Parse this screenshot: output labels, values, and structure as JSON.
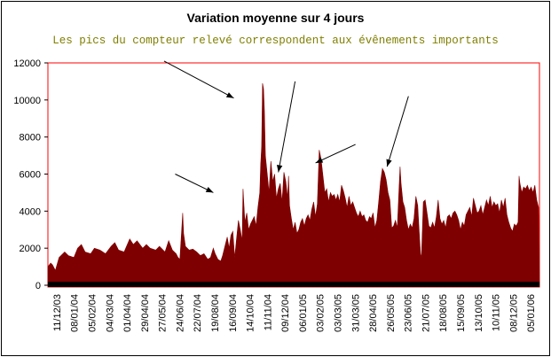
{
  "chart_data": {
    "type": "area",
    "title": "Variation moyenne sur 4 jours",
    "subtitle": "Les pics du compteur relevé correspondent aux évênements importants",
    "ylim": [
      0,
      12000
    ],
    "yticks": [
      "0",
      "2000",
      "4000",
      "6000",
      "8000",
      "10000",
      "12000"
    ],
    "xticks": [
      "11/12/03",
      "08/01/04",
      "05/02/04",
      "04/03/04",
      "01/04/04",
      "29/04/04",
      "27/05/04",
      "24/06/04",
      "22/07/04",
      "19/08/04",
      "16/09/04",
      "14/10/04",
      "11/11/04",
      "09/12/04",
      "06/01/05",
      "03/02/05",
      "03/03/05",
      "31/03/05",
      "28/04/05",
      "26/05/05",
      "23/06/05",
      "21/07/05",
      "18/08/05",
      "15/09/05",
      "13/10/05",
      "10/11/05",
      "08/12/05",
      "05/01/06"
    ],
    "series": [
      {
        "color": "#7f0000",
        "points": [
          [
            0,
            1000
          ],
          [
            3,
            1200
          ],
          [
            5,
            1100
          ],
          [
            8,
            800
          ],
          [
            12,
            1500
          ],
          [
            18,
            1800
          ],
          [
            22,
            1600
          ],
          [
            28,
            1500
          ],
          [
            32,
            2000
          ],
          [
            36,
            2200
          ],
          [
            40,
            1800
          ],
          [
            46,
            1700
          ],
          [
            50,
            2000
          ],
          [
            56,
            1900
          ],
          [
            62,
            1700
          ],
          [
            68,
            2100
          ],
          [
            72,
            2300
          ],
          [
            76,
            1900
          ],
          [
            82,
            1800
          ],
          [
            88,
            2500
          ],
          [
            92,
            2200
          ],
          [
            96,
            2400
          ],
          [
            102,
            2000
          ],
          [
            106,
            2200
          ],
          [
            110,
            2000
          ],
          [
            116,
            1900
          ],
          [
            120,
            2100
          ],
          [
            126,
            1800
          ],
          [
            130,
            2400
          ],
          [
            134,
            1900
          ],
          [
            138,
            1700
          ],
          [
            140,
            1500
          ],
          [
            142,
            1400
          ],
          [
            144,
            3000
          ],
          [
            145,
            3900
          ],
          [
            146,
            2800
          ],
          [
            148,
            2100
          ],
          [
            152,
            1900
          ],
          [
            156,
            1950
          ],
          [
            160,
            1800
          ],
          [
            164,
            1600
          ],
          [
            168,
            1700
          ],
          [
            172,
            1400
          ],
          [
            175,
            1500
          ],
          [
            178,
            2000
          ],
          [
            180,
            1700
          ],
          [
            183,
            1400
          ],
          [
            186,
            1300
          ],
          [
            188,
            1600
          ],
          [
            191,
            2200
          ],
          [
            193,
            2600
          ],
          [
            195,
            2000
          ],
          [
            197,
            2700
          ],
          [
            199,
            2900
          ],
          [
            201,
            1500
          ],
          [
            203,
            2500
          ],
          [
            205,
            3500
          ],
          [
            207,
            3000
          ],
          [
            209,
            2400
          ],
          [
            210,
            5200
          ],
          [
            212,
            3400
          ],
          [
            214,
            3900
          ],
          [
            216,
            3000
          ],
          [
            218,
            3300
          ],
          [
            220,
            3500
          ],
          [
            222,
            3700
          ],
          [
            224,
            3200
          ],
          [
            226,
            4200
          ],
          [
            228,
            5000
          ],
          [
            229,
            6500
          ],
          [
            230,
            7500
          ],
          [
            231,
            10900
          ],
          [
            232,
            10600
          ],
          [
            233,
            9400
          ],
          [
            234,
            7000
          ],
          [
            236,
            6000
          ],
          [
            238,
            5000
          ],
          [
            240,
            6700
          ],
          [
            242,
            5600
          ],
          [
            244,
            6000
          ],
          [
            246,
            4700
          ],
          [
            248,
            5200
          ],
          [
            250,
            5500
          ],
          [
            252,
            4500
          ],
          [
            254,
            6100
          ],
          [
            256,
            5600
          ],
          [
            258,
            4700
          ],
          [
            259,
            5900
          ],
          [
            260,
            4300
          ],
          [
            262,
            3600
          ],
          [
            264,
            3000
          ],
          [
            266,
            3400
          ],
          [
            268,
            2800
          ],
          [
            270,
            3000
          ],
          [
            272,
            3400
          ],
          [
            274,
            3600
          ],
          [
            276,
            3200
          ],
          [
            278,
            3600
          ],
          [
            280,
            3800
          ],
          [
            282,
            3500
          ],
          [
            284,
            4100
          ],
          [
            286,
            4500
          ],
          [
            288,
            3700
          ],
          [
            290,
            4400
          ],
          [
            292,
            7300
          ],
          [
            294,
            6800
          ],
          [
            296,
            5900
          ],
          [
            298,
            5000
          ],
          [
            300,
            5200
          ],
          [
            302,
            4500
          ],
          [
            304,
            5000
          ],
          [
            306,
            4800
          ],
          [
            308,
            4900
          ],
          [
            310,
            4600
          ],
          [
            312,
            4900
          ],
          [
            314,
            4500
          ],
          [
            316,
            5400
          ],
          [
            318,
            5100
          ],
          [
            320,
            4700
          ],
          [
            322,
            4200
          ],
          [
            324,
            4800
          ],
          [
            326,
            4300
          ],
          [
            328,
            4500
          ],
          [
            330,
            4200
          ],
          [
            332,
            3900
          ],
          [
            334,
            3700
          ],
          [
            336,
            4000
          ],
          [
            338,
            3700
          ],
          [
            340,
            3800
          ],
          [
            342,
            3500
          ],
          [
            344,
            3400
          ],
          [
            346,
            3700
          ],
          [
            348,
            3600
          ],
          [
            350,
            3900
          ],
          [
            352,
            3100
          ],
          [
            354,
            3500
          ],
          [
            356,
            4500
          ],
          [
            358,
            5600
          ],
          [
            360,
            6300
          ],
          [
            362,
            6100
          ],
          [
            364,
            5700
          ],
          [
            366,
            5000
          ],
          [
            368,
            4600
          ],
          [
            370,
            3100
          ],
          [
            372,
            3200
          ],
          [
            374,
            3500
          ],
          [
            376,
            3100
          ],
          [
            378,
            5400
          ],
          [
            379,
            6400
          ],
          [
            380,
            5500
          ],
          [
            382,
            4500
          ],
          [
            384,
            4200
          ],
          [
            386,
            3500
          ],
          [
            388,
            3000
          ],
          [
            390,
            3300
          ],
          [
            392,
            3100
          ],
          [
            394,
            3600
          ],
          [
            396,
            4800
          ],
          [
            398,
            4300
          ],
          [
            400,
            2500
          ],
          [
            401,
            1700
          ],
          [
            402,
            1500
          ],
          [
            404,
            4500
          ],
          [
            406,
            4600
          ],
          [
            408,
            3900
          ],
          [
            410,
            3200
          ],
          [
            412,
            3100
          ],
          [
            414,
            3400
          ],
          [
            416,
            3100
          ],
          [
            418,
            3700
          ],
          [
            420,
            4600
          ],
          [
            422,
            3600
          ],
          [
            424,
            3300
          ],
          [
            426,
            3500
          ],
          [
            428,
            3100
          ],
          [
            430,
            3700
          ],
          [
            432,
            3800
          ],
          [
            434,
            3600
          ],
          [
            436,
            3900
          ],
          [
            438,
            4000
          ],
          [
            440,
            3800
          ],
          [
            442,
            3500
          ],
          [
            444,
            3000
          ],
          [
            446,
            3400
          ],
          [
            448,
            3200
          ],
          [
            450,
            3800
          ],
          [
            452,
            4000
          ],
          [
            454,
            4200
          ],
          [
            456,
            3700
          ],
          [
            458,
            4700
          ],
          [
            460,
            4300
          ],
          [
            462,
            3900
          ],
          [
            464,
            4000
          ],
          [
            466,
            4300
          ],
          [
            468,
            3800
          ],
          [
            470,
            4200
          ],
          [
            472,
            4600
          ],
          [
            474,
            4300
          ],
          [
            476,
            4800
          ],
          [
            478,
            4200
          ],
          [
            480,
            4500
          ],
          [
            482,
            4300
          ],
          [
            484,
            4400
          ],
          [
            486,
            3900
          ],
          [
            488,
            4600
          ],
          [
            490,
            4200
          ],
          [
            492,
            4700
          ],
          [
            494,
            3800
          ],
          [
            496,
            3400
          ],
          [
            498,
            3100
          ],
          [
            500,
            2900
          ],
          [
            502,
            3300
          ],
          [
            504,
            3200
          ],
          [
            506,
            3400
          ],
          [
            507,
            5900
          ],
          [
            508,
            5500
          ],
          [
            510,
            5000
          ],
          [
            512,
            5300
          ],
          [
            514,
            5200
          ],
          [
            516,
            5400
          ],
          [
            518,
            5100
          ],
          [
            520,
            5300
          ],
          [
            522,
            5000
          ],
          [
            524,
            5400
          ],
          [
            526,
            4600
          ],
          [
            528,
            4200
          ],
          [
            529,
            0
          ]
        ]
      }
    ],
    "annotations": [
      {
        "from": [
          125,
          12100
        ],
        "to": [
          200,
          10100
        ]
      },
      {
        "from": [
          266,
          11000
        ],
        "to": [
          248,
          6100
        ]
      },
      {
        "from": [
          331,
          7600
        ],
        "to": [
          288,
          6600
        ]
      },
      {
        "from": [
          388,
          10200
        ],
        "to": [
          365,
          6400
        ]
      },
      {
        "from": [
          137,
          6000
        ],
        "to": [
          178,
          5000
        ]
      }
    ]
  }
}
